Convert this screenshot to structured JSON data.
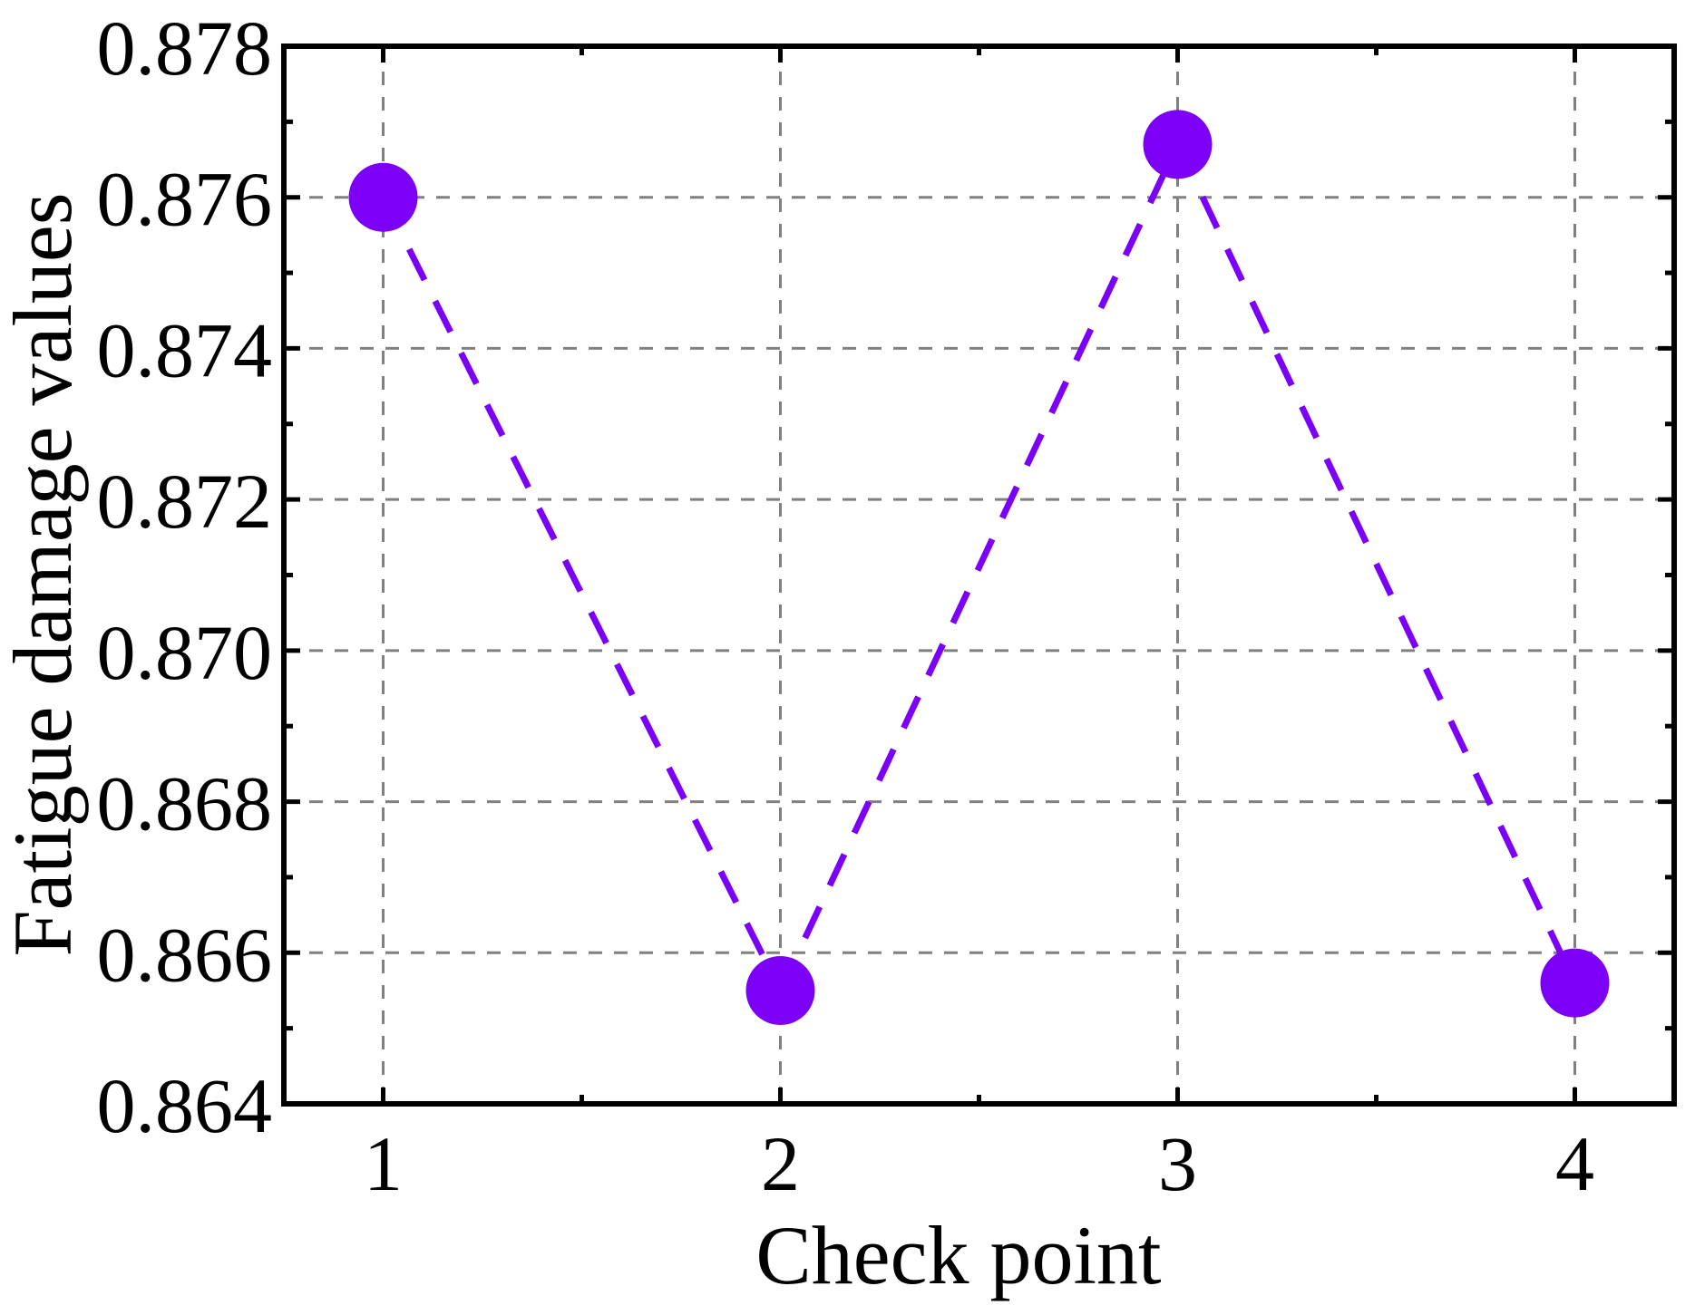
{
  "chart_data": {
    "type": "line",
    "title": "",
    "xlabel": "Check point",
    "ylabel": "Fatigue damage values",
    "x": [
      1,
      2,
      3,
      4
    ],
    "x_ticks": [
      "1",
      "2",
      "3",
      "4"
    ],
    "xlim": [
      0.75,
      4.25
    ],
    "ylim": [
      0.864,
      0.878
    ],
    "y_ticks": [
      "0.864",
      "0.866",
      "0.868",
      "0.870",
      "0.872",
      "0.874",
      "0.876",
      "0.878"
    ],
    "series": [
      {
        "values": [
          0.876,
          0.8655,
          0.8767,
          0.8656
        ],
        "color": "#7b00f5",
        "line_style": "dashed",
        "marker": "circle"
      }
    ],
    "grid": true,
    "grid_color": "#808080",
    "axis_color": "#000000",
    "legend": "none"
  }
}
